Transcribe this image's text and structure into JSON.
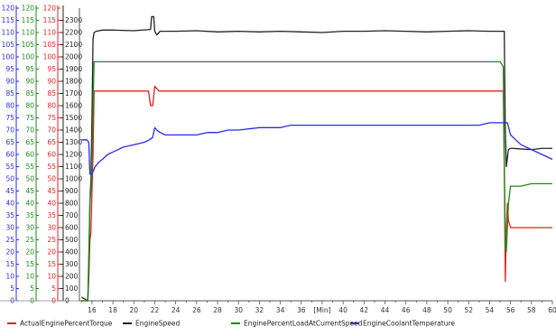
{
  "chart_data": {
    "type": "line",
    "title": "",
    "xlabel": "",
    "x_unit_label": "[Min]",
    "x_ticks": [
      16,
      18,
      20,
      22,
      24,
      26,
      28,
      30,
      32,
      34,
      36,
      40,
      42,
      44,
      46,
      48,
      50,
      52,
      54,
      56,
      58,
      60
    ],
    "xlim": [
      14.8,
      60
    ],
    "axes": [
      {
        "id": "coolant",
        "color": "#2a2af0",
        "ylim": [
          0,
          120
        ],
        "ticks": [
          0,
          5,
          10,
          15,
          20,
          25,
          30,
          35,
          40,
          45,
          50,
          55,
          60,
          65,
          70,
          75,
          80,
          85,
          90,
          95,
          100,
          105,
          110,
          115,
          120
        ]
      },
      {
        "id": "load",
        "color": "#1a8a1a",
        "ylim": [
          0,
          120
        ],
        "ticks": [
          0,
          5,
          10,
          15,
          20,
          25,
          30,
          35,
          40,
          45,
          50,
          55,
          60,
          65,
          70,
          75,
          80,
          85,
          90,
          95,
          100,
          105,
          110,
          115,
          120
        ]
      },
      {
        "id": "torque",
        "color": "#e02020",
        "ylim": [
          0,
          120
        ],
        "ticks": [
          0,
          5,
          10,
          15,
          20,
          25,
          30,
          35,
          40,
          45,
          50,
          55,
          60,
          65,
          70,
          75,
          80,
          85,
          90,
          95,
          100,
          105,
          110,
          115,
          120
        ]
      },
      {
        "id": "speed",
        "color": "#222222",
        "ylim": [
          0,
          2400
        ],
        "ticks": [
          0,
          100,
          200,
          300,
          400,
          500,
          600,
          700,
          800,
          900,
          1000,
          1100,
          1200,
          1300,
          1400,
          1500,
          1600,
          1700,
          1800,
          1900,
          2000,
          2100,
          2200,
          2300
        ]
      }
    ],
    "series": [
      {
        "name": "ActualEnginePercentTorque",
        "axis": "torque",
        "color": "#e02020",
        "x": [
          15.0,
          15.6,
          15.7,
          15.8,
          15.9,
          16.0,
          16.1,
          16.2,
          21.4,
          21.6,
          21.8,
          22.0,
          22.2,
          22.4,
          55.3,
          55.4,
          55.5,
          55.6,
          55.7,
          55.8,
          56.0,
          60.0
        ],
        "y": [
          0,
          0,
          10,
          25,
          28,
          45,
          60,
          86,
          86,
          80,
          80,
          88,
          87,
          86,
          86,
          55,
          8,
          30,
          40,
          33,
          30,
          30
        ]
      },
      {
        "name": "EngineSpeed",
        "axis": "speed",
        "color": "#222222",
        "x": [
          15.0,
          15.6,
          15.7,
          15.8,
          15.9,
          16.0,
          16.1,
          16.2,
          16.4,
          17.0,
          18.0,
          20.0,
          21.6,
          21.7,
          21.9,
          22.0,
          22.2,
          22.5,
          24.0,
          26.0,
          28.0,
          30.0,
          32.0,
          34.0,
          36.0,
          38.0,
          40.0,
          42.0,
          44.0,
          46.0,
          48.0,
          50.0,
          52.0,
          54.0,
          55.4,
          55.5,
          55.6,
          55.8,
          56.0,
          56.2,
          57.0,
          58.0,
          59.0,
          60.0
        ],
        "y": [
          30,
          0,
          300,
          800,
          1000,
          1500,
          2150,
          2200,
          2210,
          2220,
          2220,
          2215,
          2225,
          2330,
          2330,
          2210,
          2180,
          2210,
          2210,
          2215,
          2205,
          2210,
          2205,
          2210,
          2205,
          2200,
          2210,
          2210,
          2215,
          2210,
          2205,
          2210,
          2215,
          2210,
          2210,
          1400,
          1100,
          1240,
          1250,
          1250,
          1245,
          1240,
          1250,
          1250
        ]
      },
      {
        "name": "EnginePercentLoadAtCurrentSpeed",
        "axis": "load",
        "color": "#1a8a1a",
        "x": [
          15.0,
          15.6,
          15.7,
          15.8,
          15.9,
          16.0,
          16.1,
          16.2,
          21.0,
          22.0,
          24.0,
          30.0,
          40.0,
          50.0,
          55.0,
          55.3,
          55.4,
          55.5,
          55.6,
          55.8,
          56.0,
          57.0,
          58.0,
          60.0
        ],
        "y": [
          0,
          0,
          20,
          40,
          45,
          60,
          80,
          98,
          98,
          98,
          98,
          98,
          98,
          98,
          98,
          96,
          60,
          22,
          20,
          40,
          47,
          47,
          48,
          48
        ]
      },
      {
        "name": "EngineCoolantTemperature",
        "axis": "coolant",
        "color": "#2a2af0",
        "x": [
          15.0,
          15.5,
          15.7,
          15.8,
          16.0,
          16.3,
          16.7,
          17.0,
          17.5,
          18.0,
          19.0,
          20.0,
          21.0,
          21.5,
          21.8,
          22.0,
          22.2,
          22.5,
          23.0,
          24.0,
          25.0,
          26.0,
          27.0,
          28.0,
          29.0,
          30.0,
          32.0,
          34.0,
          35.0,
          36.0,
          38.0,
          40.0,
          42.0,
          44.0,
          46.0,
          48.0,
          50.0,
          52.0,
          53.0,
          54.0,
          55.0,
          55.3,
          55.5,
          55.7,
          56.0,
          56.5,
          57.0,
          58.0,
          59.0,
          60.0
        ],
        "y": [
          66,
          66,
          65,
          52,
          52,
          55,
          57,
          58,
          60,
          61,
          63,
          64,
          65,
          66,
          67,
          71,
          70,
          69,
          68,
          68,
          68,
          68,
          69,
          69,
          70,
          70,
          71,
          71,
          72,
          72,
          72,
          72,
          72,
          72,
          72,
          72,
          72,
          72,
          72,
          73,
          73,
          73,
          73,
          73,
          68,
          66,
          64,
          62,
          60,
          58
        ]
      }
    ],
    "legend": {
      "placement": "bottom",
      "entries": [
        {
          "name": "ActualEnginePercentTorque",
          "color": "#e02020"
        },
        {
          "name": "EngineSpeed",
          "color": "#222222"
        },
        {
          "name": "EnginePercentLoadAtCurrentSpeed",
          "color": "#1a8a1a"
        },
        {
          "name": "EngineCoolantTemperature",
          "color": "#2a2af0"
        }
      ]
    },
    "grid": false
  }
}
